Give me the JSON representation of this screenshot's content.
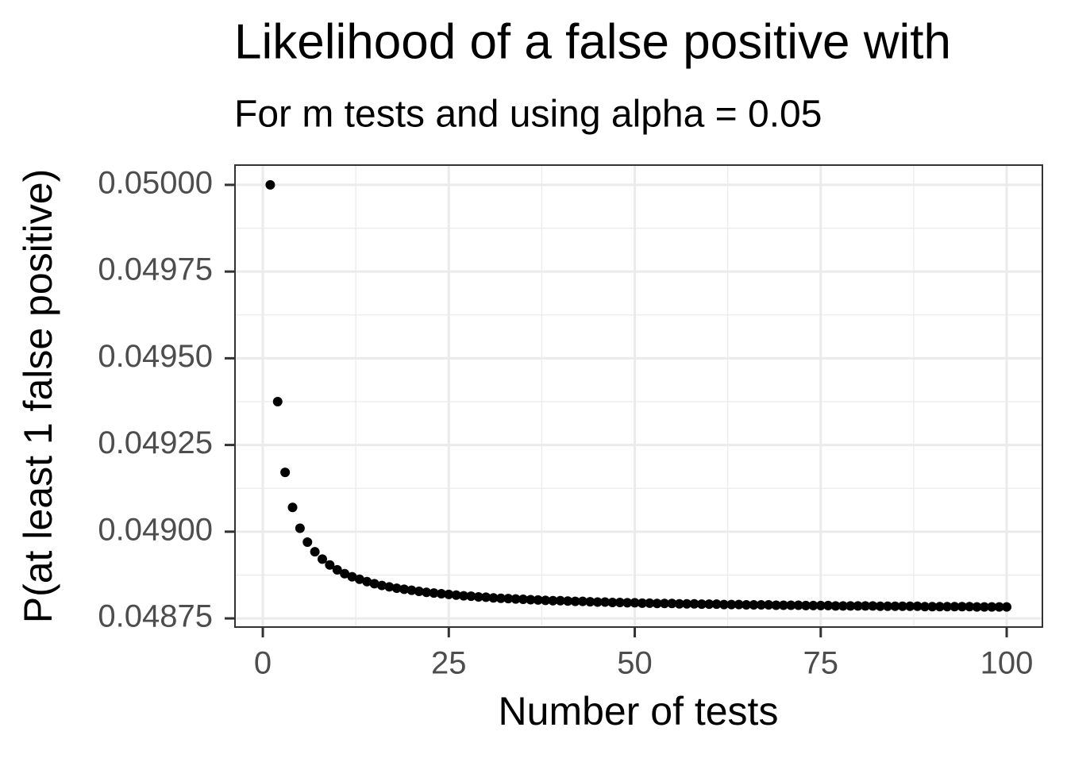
{
  "chart_data": {
    "type": "scatter",
    "title": "Likelihood of a false positive with",
    "subtitle": "For m tests and using alpha = 0.05",
    "x_label": "Number of tests",
    "y_label": "P(at least 1 false positive)",
    "color": "#000000",
    "grid": true,
    "x": [
      1,
      2,
      3,
      4,
      5,
      6,
      7,
      8,
      9,
      10,
      11,
      12,
      13,
      14,
      15,
      16,
      17,
      18,
      19,
      20,
      21,
      22,
      23,
      24,
      25,
      26,
      27,
      28,
      29,
      30,
      31,
      32,
      33,
      34,
      35,
      36,
      37,
      38,
      39,
      40,
      41,
      42,
      43,
      44,
      45,
      46,
      47,
      48,
      49,
      50,
      51,
      52,
      53,
      54,
      55,
      56,
      57,
      58,
      59,
      60,
      61,
      62,
      63,
      64,
      65,
      66,
      67,
      68,
      69,
      70,
      71,
      72,
      73,
      74,
      75,
      76,
      77,
      78,
      79,
      80,
      81,
      82,
      83,
      84,
      85,
      86,
      87,
      88,
      89,
      90,
      91,
      92,
      93,
      94,
      95,
      96,
      97,
      98,
      99,
      100
    ],
    "values": [
      0.05,
      0.049375,
      0.049171,
      0.04907,
      0.04901,
      0.04897,
      0.048942,
      0.048921,
      0.048904,
      0.04889,
      0.048879,
      0.04887,
      0.048863,
      0.048856,
      0.04885,
      0.048845,
      0.048841,
      0.048837,
      0.048834,
      0.048831,
      0.048828,
      0.048825,
      0.048823,
      0.048821,
      0.048819,
      0.048817,
      0.048815,
      0.048814,
      0.048812,
      0.048811,
      0.048809,
      0.048808,
      0.048807,
      0.048806,
      0.048805,
      0.048804,
      0.048803,
      0.048802,
      0.048801,
      0.048801,
      0.0488,
      0.048799,
      0.048799,
      0.048798,
      0.048797,
      0.048797,
      0.048796,
      0.048796,
      0.048795,
      0.048795,
      0.048794,
      0.048794,
      0.048793,
      0.048793,
      0.048793,
      0.048792,
      0.048792,
      0.048792,
      0.048791,
      0.048791,
      0.048791,
      0.04879,
      0.04879,
      0.04879,
      0.048789,
      0.048789,
      0.048789,
      0.048789,
      0.048788,
      0.048788,
      0.048788,
      0.048788,
      0.048787,
      0.048787,
      0.048787,
      0.048787,
      0.048786,
      0.048786,
      0.048786,
      0.048786,
      0.048786,
      0.048786,
      0.048785,
      0.048785,
      0.048785,
      0.048785,
      0.048785,
      0.048785,
      0.048784,
      0.048784,
      0.048784,
      0.048784,
      0.048784,
      0.048784,
      0.048784,
      0.048783,
      0.048783,
      0.048783,
      0.048783,
      0.048783
    ],
    "xlim": [
      -3.74,
      104.8
    ],
    "ylim": [
      0.048725,
      0.050057
    ],
    "xticks": [
      0,
      25,
      50,
      75,
      100
    ],
    "yticks": [
      {
        "value": 0.05,
        "label": "0.05000"
      },
      0.04975,
      {
        "value": 0.0495,
        "label": "0.04950"
      },
      0.04925,
      {
        "value": 0.049,
        "label": "0.04900"
      },
      0.04875
    ]
  }
}
